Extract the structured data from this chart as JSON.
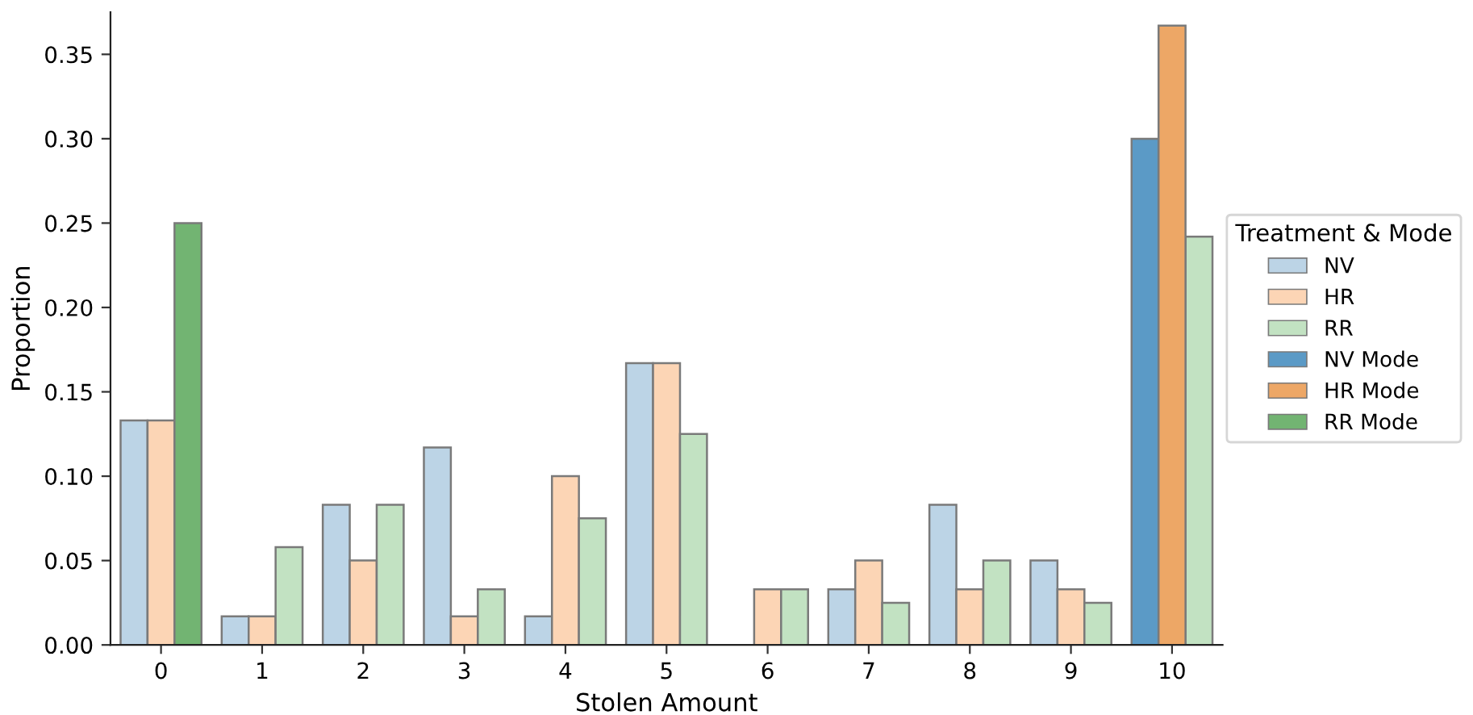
{
  "chart_data": {
    "type": "bar",
    "xlabel": "Stolen Amount",
    "ylabel": "Proportion",
    "legend_title": "Treatment & Mode",
    "legend": "right",
    "categories": [
      "0",
      "1",
      "2",
      "3",
      "4",
      "5",
      "6",
      "7",
      "8",
      "9",
      "10"
    ],
    "series": [
      {
        "name": "NV",
        "color": "#bcd4e6",
        "values": [
          0.133,
          0.017,
          0.083,
          0.117,
          0.017,
          0.167,
          null,
          0.033,
          0.083,
          0.05,
          null
        ]
      },
      {
        "name": "HR",
        "color": "#fcd5b5",
        "values": [
          0.133,
          0.017,
          0.05,
          0.017,
          0.1,
          0.167,
          0.033,
          0.05,
          0.033,
          0.033,
          null
        ]
      },
      {
        "name": "RR",
        "color": "#c2e2c2",
        "values": [
          null,
          0.058,
          0.083,
          0.033,
          0.075,
          0.125,
          0.033,
          0.025,
          0.05,
          0.025,
          0.242
        ]
      },
      {
        "name": "NV Mode",
        "color": "#5b9ac6",
        "values": [
          null,
          null,
          null,
          null,
          null,
          null,
          null,
          null,
          null,
          null,
          0.3
        ]
      },
      {
        "name": "HR Mode",
        "color": "#eda766",
        "values": [
          null,
          null,
          null,
          null,
          null,
          null,
          null,
          null,
          null,
          null,
          0.367
        ]
      },
      {
        "name": "RR Mode",
        "color": "#72b472",
        "values": [
          0.25,
          null,
          null,
          null,
          null,
          null,
          null,
          null,
          null,
          null,
          null
        ]
      }
    ],
    "ylim": [
      0,
      0.375
    ],
    "yticks": [
      {
        "value": 0,
        "label": "0.00"
      },
      {
        "value": 0.05,
        "label": "0.05"
      },
      {
        "value": 0.1,
        "label": "0.10"
      },
      {
        "value": 0.15,
        "label": "0.15"
      },
      {
        "value": 0.2,
        "label": "0.20"
      },
      {
        "value": 0.25,
        "label": "0.25"
      },
      {
        "value": 0.3,
        "label": "0.30"
      },
      {
        "value": 0.35,
        "label": "0.35"
      }
    ],
    "grid": false
  }
}
